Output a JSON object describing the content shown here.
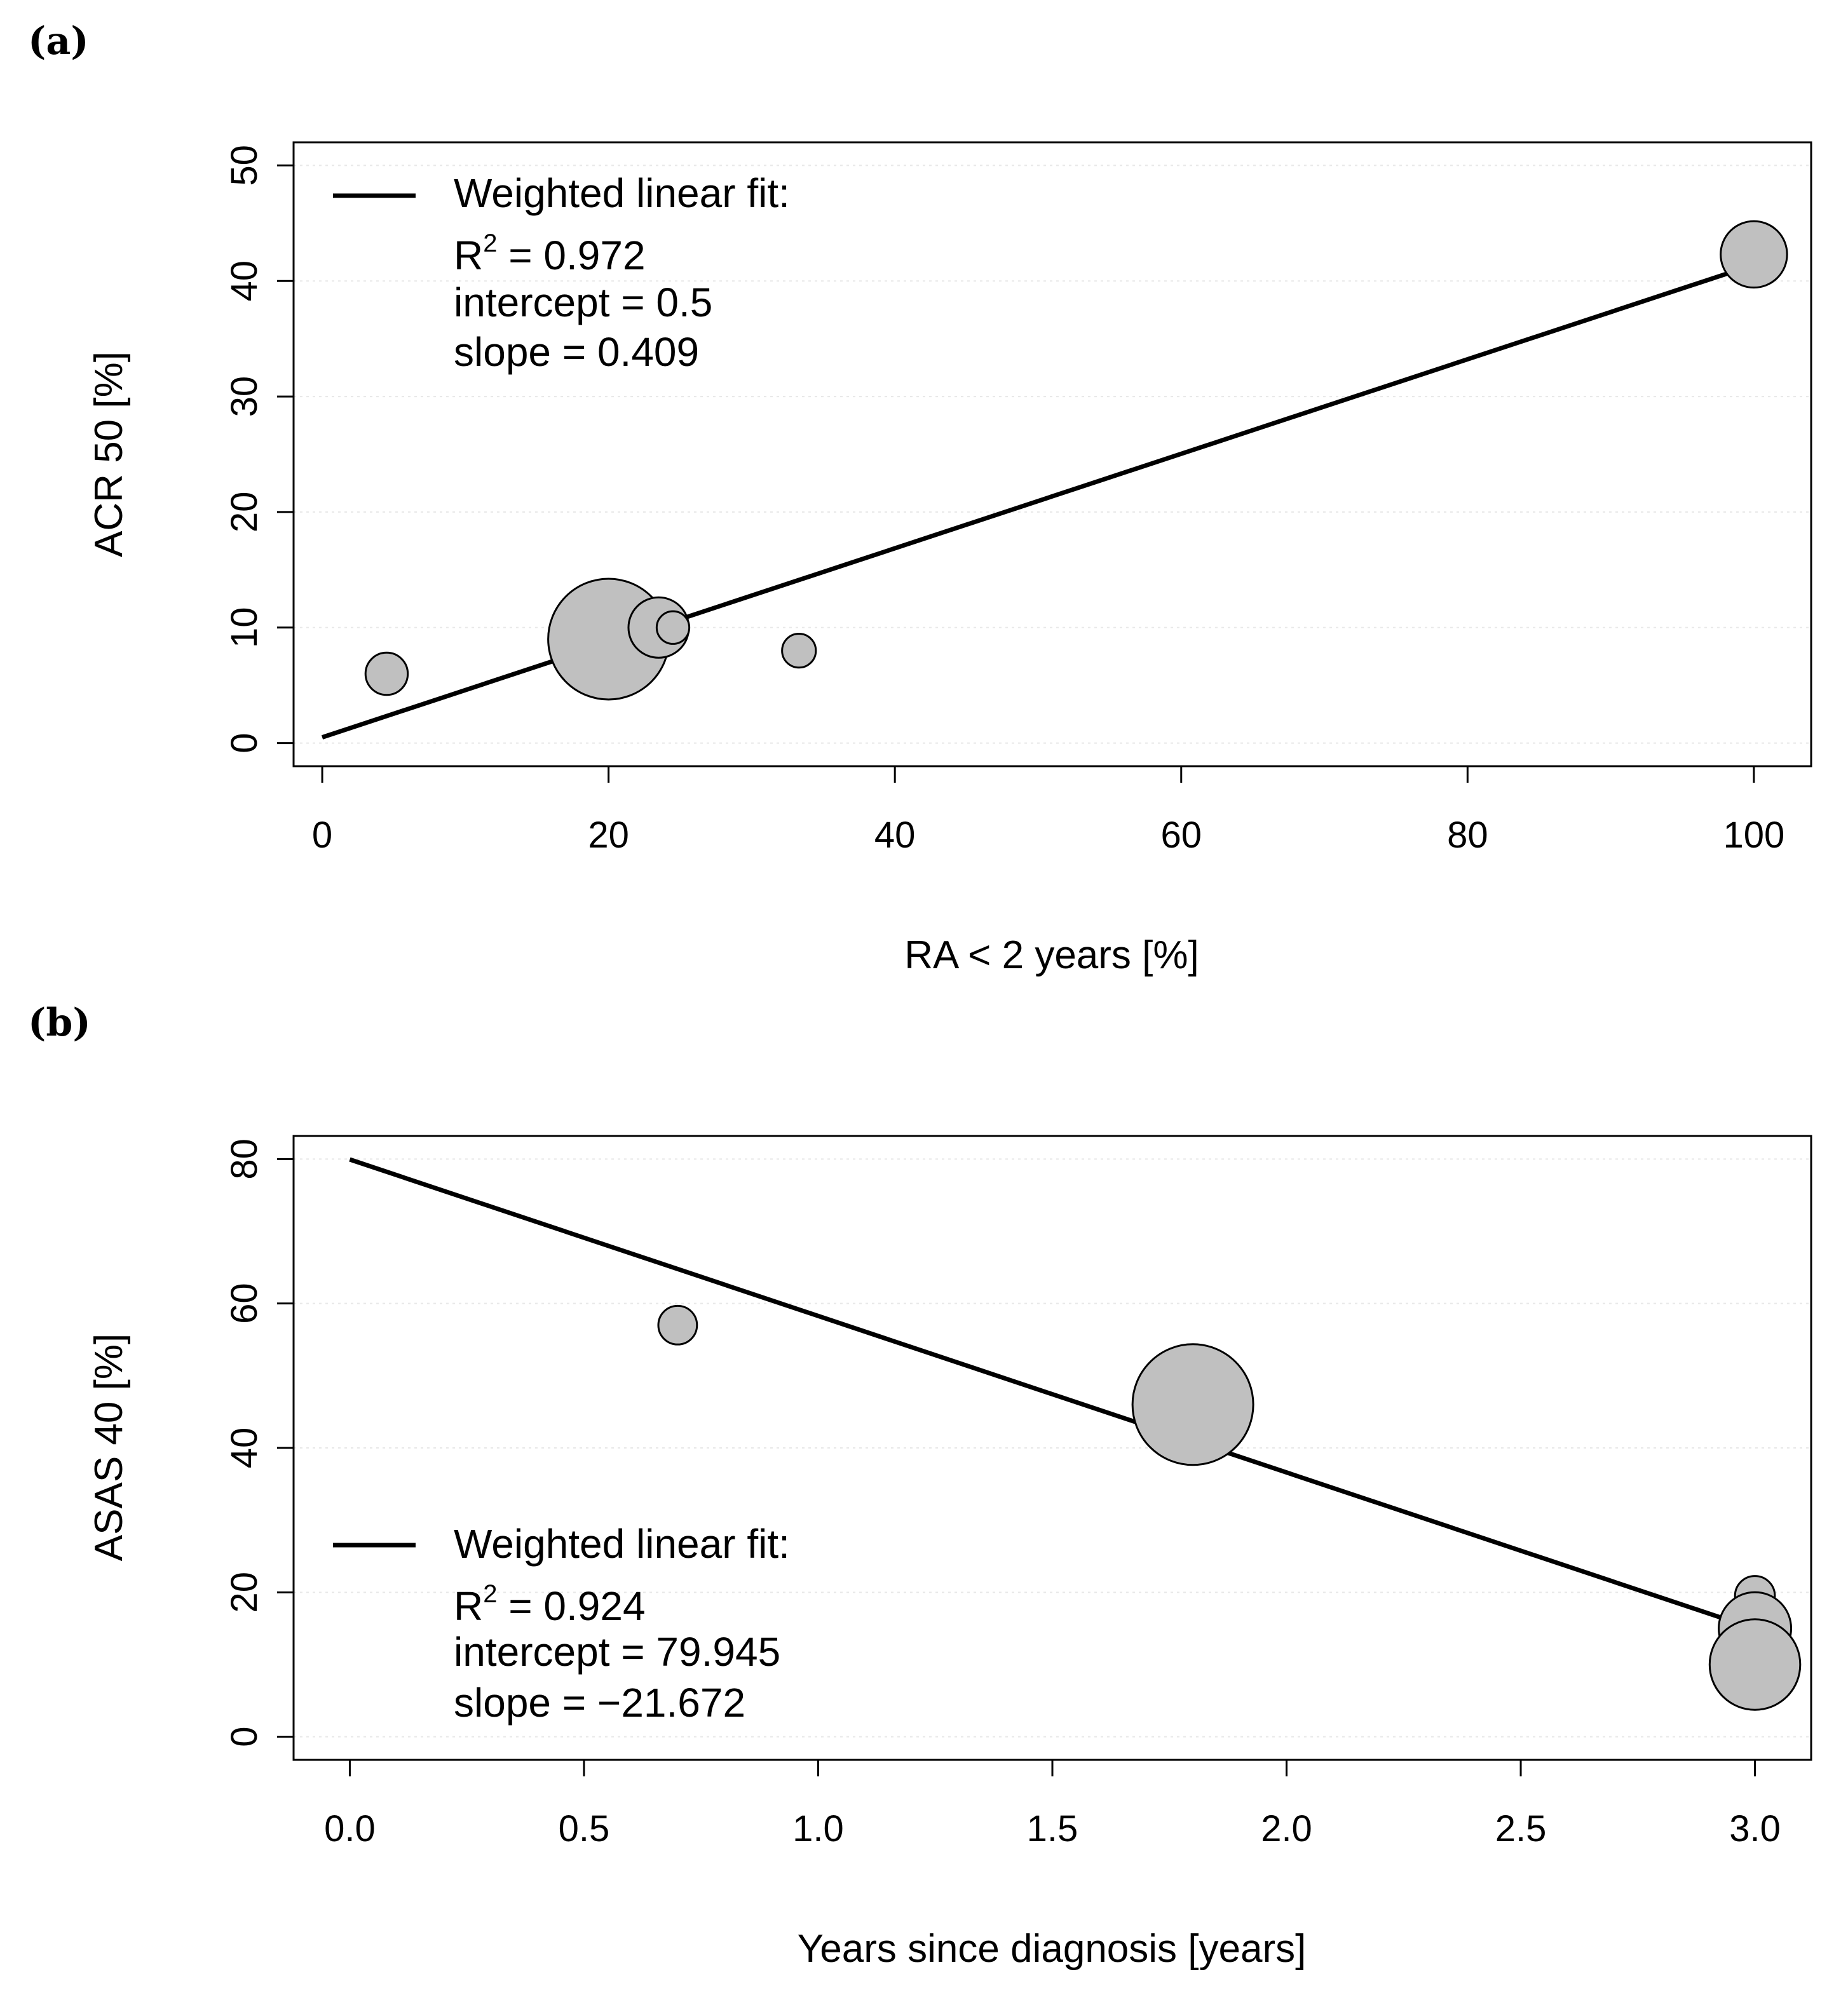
{
  "chart_data": [
    {
      "type": "scatter",
      "panel_label": "(a)",
      "xlabel": "RA < 2 years [%]",
      "ylabel": "ACR 50 [%]",
      "xlim": [
        -2,
        104
      ],
      "ylim": [
        -2,
        52
      ],
      "xticks": [
        0,
        20,
        40,
        60,
        80,
        100
      ],
      "xtick_labels": [
        "0",
        "20",
        "40",
        "60",
        "80",
        "100"
      ],
      "yticks": [
        0,
        10,
        20,
        30,
        40,
        50
      ],
      "ytick_labels": [
        "0",
        "10",
        "20",
        "30",
        "40",
        "50"
      ],
      "points": [
        {
          "x": 4.5,
          "y": 6,
          "weight": 0.35
        },
        {
          "x": 20,
          "y": 9,
          "weight": 1.0
        },
        {
          "x": 23.5,
          "y": 10,
          "weight": 0.5
        },
        {
          "x": 24.5,
          "y": 10,
          "weight": 0.27
        },
        {
          "x": 33.3,
          "y": 8,
          "weight": 0.28
        },
        {
          "x": 100,
          "y": 42.3,
          "weight": 0.55
        }
      ],
      "fit": {
        "intercept": 0.5,
        "slope": 0.409,
        "x_range": [
          0,
          100
        ]
      },
      "legend": {
        "title": "Weighted linear fit:",
        "r2_label": "R",
        "r2_sup": "2",
        "r2_value": " = 0.972",
        "intercept_text": "intercept = 0.5",
        "slope_text": "slope = 0.409",
        "position": "top-left"
      },
      "grid": true
    },
    {
      "type": "scatter",
      "panel_label": "(b)",
      "xlabel": "Years since diagnosis [years]",
      "ylabel": "ASAS 40 [%]",
      "xlim": [
        -0.12,
        3.12
      ],
      "ylim": [
        -3.2,
        83.2
      ],
      "xticks": [
        0.0,
        0.5,
        1.0,
        1.5,
        2.0,
        2.5,
        3.0
      ],
      "xtick_labels": [
        "0.0",
        "0.5",
        "1.0",
        "1.5",
        "2.0",
        "2.5",
        "3.0"
      ],
      "yticks": [
        0,
        20,
        40,
        60,
        80
      ],
      "ytick_labels": [
        "0",
        "20",
        "40",
        "60",
        "80"
      ],
      "points": [
        {
          "x": 0.7,
          "y": 57,
          "weight": 0.32
        },
        {
          "x": 1.8,
          "y": 46,
          "weight": 1.0
        },
        {
          "x": 3.0,
          "y": 19.5,
          "weight": 0.33
        },
        {
          "x": 3.0,
          "y": 15,
          "weight": 0.6
        },
        {
          "x": 3.0,
          "y": 10,
          "weight": 0.75
        }
      ],
      "fit": {
        "intercept": 79.945,
        "slope": -21.672,
        "x_range": [
          0,
          3
        ]
      },
      "legend": {
        "title": "Weighted linear fit:",
        "r2_label": "R",
        "r2_sup": "2",
        "r2_value": " = 0.924",
        "intercept_text": "intercept = 79.945",
        "slope_text": "slope = −21.672",
        "position": "bottom-left"
      },
      "grid": true
    }
  ]
}
